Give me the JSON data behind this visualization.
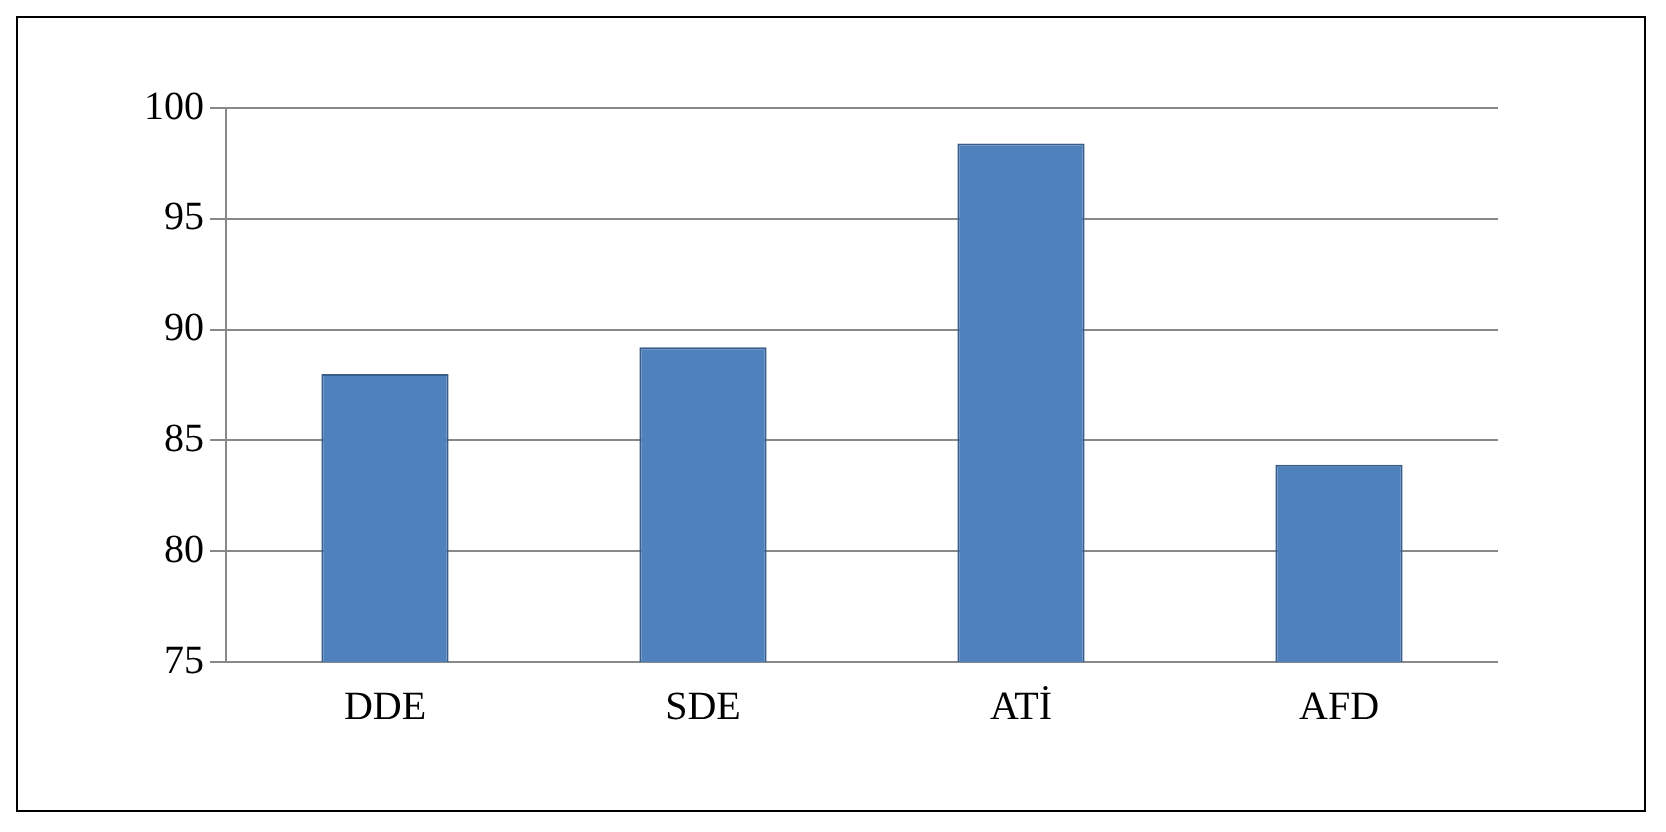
{
  "chart_data": {
    "type": "bar",
    "categories": [
      "DDE",
      "SDE",
      "ATİ",
      "AFD"
    ],
    "values": [
      88,
      89.2,
      98.4,
      83.9
    ],
    "color": "#4f81bd",
    "ylim": [
      75,
      100
    ],
    "yticks": [
      75,
      80,
      85,
      90,
      95,
      100
    ],
    "grid": "y"
  }
}
